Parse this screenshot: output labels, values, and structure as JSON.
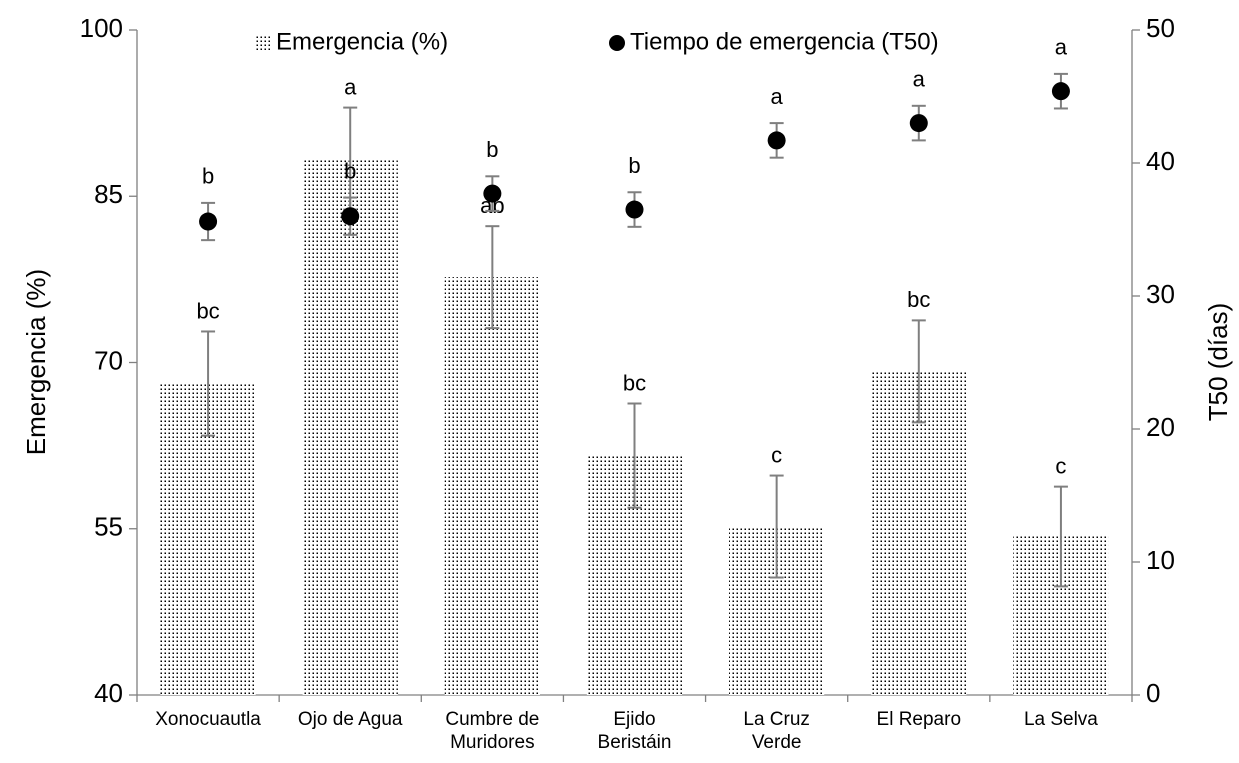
{
  "chart_data": {
    "type": "bar",
    "categories": [
      "Xonocuautla",
      "Ojo de Agua",
      "Cumbre de\nMuridores",
      "Ejido\nBeristáin",
      "La Cruz\nVerde",
      "El Reparo",
      "La Selva"
    ],
    "ylabel": "Emergencia (%)",
    "y2label": "T50 (días)",
    "ylim": [
      40,
      100
    ],
    "yticks": [
      40,
      55,
      70,
      85,
      100
    ],
    "y2lim": [
      0,
      50
    ],
    "y2ticks": [
      0,
      10,
      20,
      30,
      40,
      50
    ],
    "legend": "top",
    "grid": false,
    "series": [
      {
        "name": "Emergencia (%)",
        "type": "bar",
        "color": "#000000",
        "values": [
          68.1,
          88.4,
          77.7,
          61.6,
          55.2,
          69.2,
          54.3
        ],
        "errors": [
          4.7,
          4.6,
          4.6,
          4.7,
          4.6,
          4.6,
          4.5
        ],
        "letters": [
          "bc",
          "a",
          "ab",
          "bc",
          "c",
          "bc",
          "c"
        ]
      },
      {
        "name": "Tiempo de emergencia (T50)",
        "type": "scatter",
        "axis": "y2",
        "color": "#000000",
        "values": [
          35.6,
          36.0,
          37.7,
          36.5,
          41.7,
          43.0,
          45.4
        ],
        "errors": [
          1.4,
          1.4,
          1.3,
          1.3,
          1.3,
          1.3,
          1.3
        ],
        "letters": [
          "b",
          "b",
          "b",
          "b",
          "a",
          "a",
          "a"
        ]
      }
    ]
  }
}
